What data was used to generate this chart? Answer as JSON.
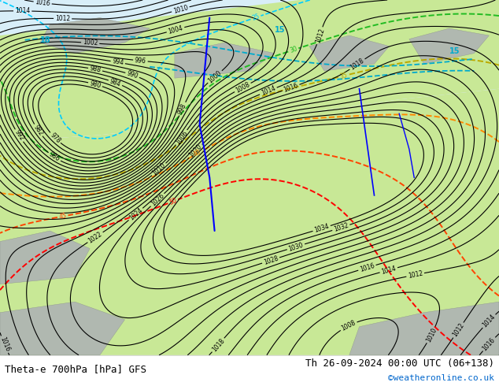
{
  "title_left": "Theta-e 700hPa [hPa] GFS",
  "title_right": "Th 26-09-2024 00:00 UTC (06+138)",
  "watermark": "©weatheronline.co.uk",
  "bg_color": "#ffffff",
  "map_bg_color": "#e8e8e8",
  "land_color": "#c8e8a0",
  "sea_color": "#ddeeff",
  "title_fontsize": 10,
  "footer_fontsize": 9,
  "watermark_color": "#0066cc",
  "pressure_contour_color": "#000000",
  "theta_contour_colors": {
    "15": "#00ccff",
    "18": "#00ccff",
    "20": "#00ccff",
    "25": "#00ccff",
    "30": "#22aa22",
    "35": "#ccaa00",
    "40": "#ff8800",
    "45": "#ff4400",
    "50": "#ff0000"
  },
  "blue_line_color": "#0000ff",
  "cyan_line_color": "#00aacc",
  "figsize": [
    6.34,
    4.9
  ],
  "dpi": 100
}
